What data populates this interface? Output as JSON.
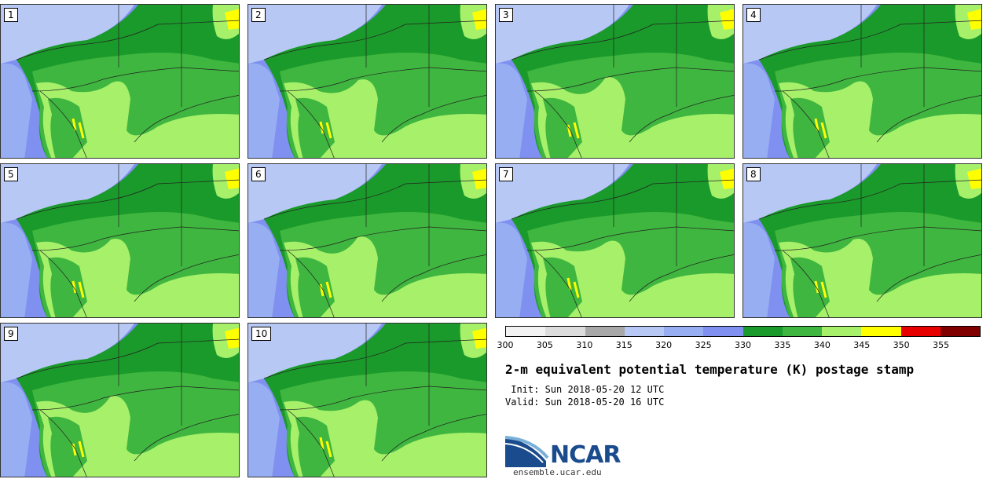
{
  "panels": [
    {
      "label": "1"
    },
    {
      "label": "2"
    },
    {
      "label": "3"
    },
    {
      "label": "4"
    },
    {
      "label": "5"
    },
    {
      "label": "6"
    },
    {
      "label": "7"
    },
    {
      "label": "8"
    },
    {
      "label": "9"
    },
    {
      "label": "10"
    }
  ],
  "colorbar": {
    "ticks": [
      "300",
      "305",
      "310",
      "315",
      "320",
      "325",
      "330",
      "335",
      "340",
      "345",
      "350",
      "355"
    ],
    "colors": [
      "#f2f2f2",
      "#dcdcdc",
      "#a8a8a8",
      "#b7c8f5",
      "#97aef2",
      "#7f90f0",
      "#1a9a2a",
      "#3fb63f",
      "#a6f06a",
      "#ffff00",
      "#e60000",
      "#800000"
    ]
  },
  "title": "2-m equivalent potential temperature (K) postage stamp",
  "init": " Init: Sun 2018-05-20 12 UTC",
  "valid": "Valid: Sun 2018-05-20 16 UTC",
  "logo": {
    "text": "NCAR",
    "site": "ensemble.ucar.edu",
    "colors": {
      "blue": "#1a4b8c",
      "light": "#7ab0d8"
    }
  },
  "map_colors": {
    "light_blue": "#b7c8f5",
    "mid_blue": "#97aef2",
    "blue": "#7f90f0",
    "dark_green": "#1a9a2a",
    "green": "#3fb63f",
    "light_green": "#a6f06a",
    "yellow": "#ffff00",
    "gray": "#a8a8a8"
  }
}
